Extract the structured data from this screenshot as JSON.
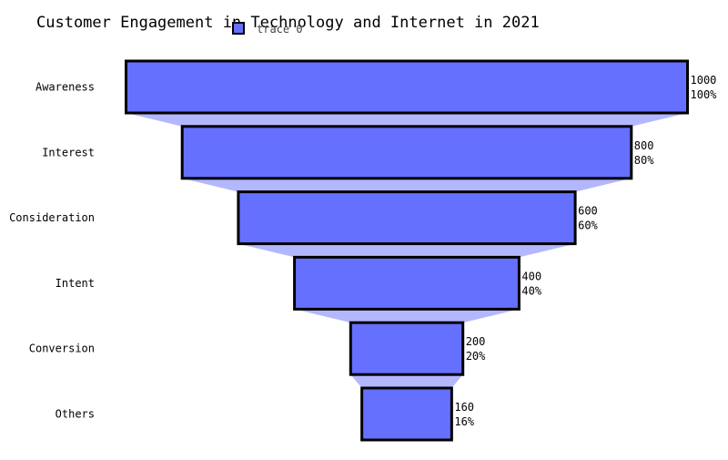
{
  "chart_data": {
    "type": "funnel",
    "title": "Customer Engagement in Technology and Internet in 2021",
    "categories": [
      "Awareness",
      "Interest",
      "Consideration",
      "Intent",
      "Conversion",
      "Others"
    ],
    "series": [
      {
        "name": "trace 0",
        "values": [
          1000,
          800,
          600,
          400,
          200,
          160
        ],
        "percent_labels": [
          "100%",
          "80%",
          "60%",
          "40%",
          "20%",
          "16%"
        ]
      }
    ],
    "legend": "top-center",
    "grid": false,
    "colors": {
      "bar_fill": "#6670fe",
      "bar_stroke": "#000000",
      "connector_fill": "#b3b7fe"
    }
  }
}
